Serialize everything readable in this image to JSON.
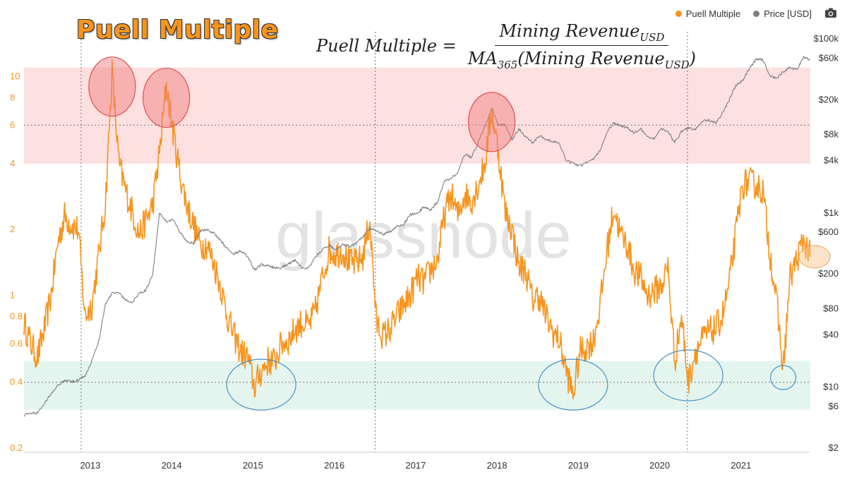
{
  "title": "Puell Multiple",
  "formula": {
    "lhs": "Puell Multiple =",
    "numerator": "Mining Revenue",
    "numerator_sub": "USD",
    "denominator": "MA",
    "denominator_sub1": "365",
    "denominator_mid": "(Mining Revenue",
    "denominator_sub2": "USD",
    "denominator_end": ")"
  },
  "legend": [
    {
      "label": "Puell Multiple",
      "color": "#f7941d"
    },
    {
      "label": "Price [USD]",
      "color": "#7f7f7f"
    }
  ],
  "watermark": "glassnode",
  "colors": {
    "puell": "#f7941d",
    "price": "#7f7f7f",
    "sell_zone": "#fde0e0",
    "buy_zone": "#e3f5ee",
    "red_circle": "#ef7878",
    "blue_circle": "#4a90c8"
  },
  "chart_data": {
    "type": "line",
    "x_ticks": [
      "2013",
      "2014",
      "2015",
      "2016",
      "2017",
      "2018",
      "2019",
      "2020",
      "2021"
    ],
    "x_range": [
      "2012-03",
      "2021-11"
    ],
    "y_left_ticks": [
      "10",
      "8",
      "6",
      "4",
      "2",
      "1",
      "0.8",
      "0.6",
      "0.4",
      "0.2"
    ],
    "y_left_range": [
      0.2,
      12
    ],
    "y_left_scale": "log",
    "y_right_ticks": [
      "$100k",
      "$60k",
      "$20k",
      "$8k",
      "$4k",
      "$1k",
      "$600",
      "$200",
      "$80",
      "$40",
      "$10",
      "$6",
      "$2"
    ],
    "y_right_range": [
      2,
      100000
    ],
    "y_right_scale": "log",
    "bands": [
      {
        "name": "sell",
        "from": 4,
        "to": 11,
        "color": "#fde0e0"
      },
      {
        "name": "buy",
        "from": 0.3,
        "to": 0.5,
        "color": "#e3f5ee"
      }
    ],
    "reference_lines": [
      {
        "axis": "y",
        "value": 6
      },
      {
        "axis": "y",
        "value": 0.4
      }
    ],
    "vertical_markers": [
      "2012-11-28",
      "2016-07-09",
      "2020-05-11"
    ],
    "series": [
      {
        "name": "Puell Multiple",
        "color": "#f7941d",
        "axis": "left",
        "points": [
          [
            "2012-03",
            0.75
          ],
          [
            "2012-04",
            0.6
          ],
          [
            "2012-05",
            0.52
          ],
          [
            "2012-06",
            0.7
          ],
          [
            "2012-07",
            1.0
          ],
          [
            "2012-08",
            1.75
          ],
          [
            "2012-09",
            2.3
          ],
          [
            "2012-10",
            2.1
          ],
          [
            "2012-11",
            2.0
          ],
          [
            "2012-12",
            0.8
          ],
          [
            "2013-01",
            0.9
          ],
          [
            "2013-02",
            1.5
          ],
          [
            "2013-03",
            2.6
          ],
          [
            "2013-04",
            10.5
          ],
          [
            "2013-05",
            4.0
          ],
          [
            "2013-06",
            3.0
          ],
          [
            "2013-07",
            2.4
          ],
          [
            "2013-08",
            1.9
          ],
          [
            "2013-09",
            2.2
          ],
          [
            "2013-10",
            2.6
          ],
          [
            "2013-11",
            4.5
          ],
          [
            "2013-12",
            9.2
          ],
          [
            "2014-01",
            5.6
          ],
          [
            "2014-02",
            3.6
          ],
          [
            "2014-03",
            2.6
          ],
          [
            "2014-04",
            2.1
          ],
          [
            "2014-05",
            1.7
          ],
          [
            "2014-06",
            1.7
          ],
          [
            "2014-07",
            1.4
          ],
          [
            "2014-08",
            1.1
          ],
          [
            "2014-09",
            0.8
          ],
          [
            "2014-10",
            0.65
          ],
          [
            "2014-11",
            0.55
          ],
          [
            "2014-12",
            0.52
          ],
          [
            "2015-01",
            0.38
          ],
          [
            "2015-02",
            0.45
          ],
          [
            "2015-03",
            0.5
          ],
          [
            "2015-04",
            0.5
          ],
          [
            "2015-05",
            0.6
          ],
          [
            "2015-06",
            0.62
          ],
          [
            "2015-07",
            0.7
          ],
          [
            "2015-08",
            0.75
          ],
          [
            "2015-09",
            0.72
          ],
          [
            "2015-10",
            0.85
          ],
          [
            "2015-11",
            1.2
          ],
          [
            "2015-12",
            1.6
          ],
          [
            "2016-01",
            1.55
          ],
          [
            "2016-02",
            1.6
          ],
          [
            "2016-03",
            1.4
          ],
          [
            "2016-04",
            1.4
          ],
          [
            "2016-05",
            1.5
          ],
          [
            "2016-06",
            2.2
          ],
          [
            "2016-07",
            0.75
          ],
          [
            "2016-08",
            0.65
          ],
          [
            "2016-09",
            0.7
          ],
          [
            "2016-10",
            0.8
          ],
          [
            "2016-11",
            0.9
          ],
          [
            "2016-12",
            1.0
          ],
          [
            "2017-01",
            1.2
          ],
          [
            "2017-02",
            1.15
          ],
          [
            "2017-03",
            1.3
          ],
          [
            "2017-04",
            1.45
          ],
          [
            "2017-05",
            2.3
          ],
          [
            "2017-06",
            2.9
          ],
          [
            "2017-07",
            2.3
          ],
          [
            "2017-08",
            2.9
          ],
          [
            "2017-09",
            2.7
          ],
          [
            "2017-10",
            3.2
          ],
          [
            "2017-11",
            4.0
          ],
          [
            "2017-12",
            7.0
          ],
          [
            "2018-01",
            4.5
          ],
          [
            "2018-02",
            2.4
          ],
          [
            "2018-03",
            2.0
          ],
          [
            "2018-04",
            1.35
          ],
          [
            "2018-05",
            1.3
          ],
          [
            "2018-06",
            0.95
          ],
          [
            "2018-07",
            1.0
          ],
          [
            "2018-08",
            0.8
          ],
          [
            "2018-09",
            0.68
          ],
          [
            "2018-10",
            0.62
          ],
          [
            "2018-11",
            0.45
          ],
          [
            "2018-12",
            0.35
          ],
          [
            "2019-01",
            0.55
          ],
          [
            "2019-02",
            0.58
          ],
          [
            "2019-03",
            0.62
          ],
          [
            "2019-04",
            0.9
          ],
          [
            "2019-05",
            1.6
          ],
          [
            "2019-06",
            2.5
          ],
          [
            "2019-07",
            1.9
          ],
          [
            "2019-08",
            1.7
          ],
          [
            "2019-09",
            1.3
          ],
          [
            "2019-10",
            1.2
          ],
          [
            "2019-11",
            1.0
          ],
          [
            "2019-12",
            1.05
          ],
          [
            "2020-01",
            1.1
          ],
          [
            "2020-02",
            1.35
          ],
          [
            "2020-03",
            0.5
          ],
          [
            "2020-04",
            0.8
          ],
          [
            "2020-05",
            0.4
          ],
          [
            "2020-06",
            0.55
          ],
          [
            "2020-07",
            0.62
          ],
          [
            "2020-08",
            0.68
          ],
          [
            "2020-09",
            0.7
          ],
          [
            "2020-10",
            0.8
          ],
          [
            "2020-11",
            1.1
          ],
          [
            "2020-12",
            1.9
          ],
          [
            "2021-01",
            3.2
          ],
          [
            "2021-02",
            3.3
          ],
          [
            "2021-03",
            3.2
          ],
          [
            "2021-04",
            3.0
          ],
          [
            "2021-05",
            1.6
          ],
          [
            "2021-06",
            0.95
          ],
          [
            "2021-07",
            0.45
          ],
          [
            "2021-08",
            1.2
          ],
          [
            "2021-09",
            1.45
          ],
          [
            "2021-10",
            1.8
          ],
          [
            "2021-11",
            1.5
          ]
        ]
      },
      {
        "name": "Price [USD]",
        "color": "#7f7f7f",
        "axis": "right",
        "points": [
          [
            "2012-03",
            4.8
          ],
          [
            "2012-04",
            5.0
          ],
          [
            "2012-05",
            5.1
          ],
          [
            "2012-06",
            6.5
          ],
          [
            "2012-07",
            8.5
          ],
          [
            "2012-08",
            10.5
          ],
          [
            "2012-09",
            12
          ],
          [
            "2012-10",
            11.5
          ],
          [
            "2012-11",
            12
          ],
          [
            "2012-12",
            13.5
          ],
          [
            "2013-01",
            20
          ],
          [
            "2013-02",
            33
          ],
          [
            "2013-03",
            90
          ],
          [
            "2013-04",
            120
          ],
          [
            "2013-05",
            122
          ],
          [
            "2013-06",
            100
          ],
          [
            "2013-07",
            95
          ],
          [
            "2013-08",
            120
          ],
          [
            "2013-09",
            130
          ],
          [
            "2013-10",
            200
          ],
          [
            "2013-11",
            1000
          ],
          [
            "2013-12",
            800
          ],
          [
            "2014-01",
            850
          ],
          [
            "2014-02",
            600
          ],
          [
            "2014-03",
            480
          ],
          [
            "2014-04",
            450
          ],
          [
            "2014-05",
            620
          ],
          [
            "2014-06",
            640
          ],
          [
            "2014-07",
            590
          ],
          [
            "2014-08",
            480
          ],
          [
            "2014-09",
            390
          ],
          [
            "2014-10",
            340
          ],
          [
            "2014-11",
            370
          ],
          [
            "2014-12",
            320
          ],
          [
            "2015-01",
            220
          ],
          [
            "2015-02",
            255
          ],
          [
            "2015-03",
            250
          ],
          [
            "2015-04",
            235
          ],
          [
            "2015-05",
            235
          ],
          [
            "2015-06",
            262
          ],
          [
            "2015-07",
            285
          ],
          [
            "2015-08",
            230
          ],
          [
            "2015-09",
            236
          ],
          [
            "2015-10",
            314
          ],
          [
            "2015-11",
            377
          ],
          [
            "2015-12",
            430
          ],
          [
            "2016-01",
            370
          ],
          [
            "2016-02",
            437
          ],
          [
            "2016-03",
            416
          ],
          [
            "2016-04",
            448
          ],
          [
            "2016-05",
            530
          ],
          [
            "2016-06",
            670
          ],
          [
            "2016-07",
            624
          ],
          [
            "2016-08",
            573
          ],
          [
            "2016-09",
            608
          ],
          [
            "2016-10",
            700
          ],
          [
            "2016-11",
            742
          ],
          [
            "2016-12",
            960
          ],
          [
            "2017-01",
            970
          ],
          [
            "2017-02",
            1190
          ],
          [
            "2017-03",
            1080
          ],
          [
            "2017-04",
            1350
          ],
          [
            "2017-05",
            2300
          ],
          [
            "2017-06",
            2480
          ],
          [
            "2017-07",
            2880
          ],
          [
            "2017-08",
            4700
          ],
          [
            "2017-09",
            4340
          ],
          [
            "2017-10",
            6450
          ],
          [
            "2017-11",
            10000
          ],
          [
            "2017-12",
            16000
          ],
          [
            "2018-01",
            10200
          ],
          [
            "2018-02",
            10300
          ],
          [
            "2018-03",
            6900
          ],
          [
            "2018-04",
            9200
          ],
          [
            "2018-05",
            7500
          ],
          [
            "2018-06",
            6400
          ],
          [
            "2018-07",
            7700
          ],
          [
            "2018-08",
            7000
          ],
          [
            "2018-09",
            6600
          ],
          [
            "2018-10",
            6300
          ],
          [
            "2018-11",
            4000
          ],
          [
            "2018-12",
            3700
          ],
          [
            "2019-01",
            3450
          ],
          [
            "2019-02",
            3850
          ],
          [
            "2019-03",
            4100
          ],
          [
            "2019-04",
            5300
          ],
          [
            "2019-05",
            8600
          ],
          [
            "2019-06",
            10800
          ],
          [
            "2019-07",
            10000
          ],
          [
            "2019-08",
            9600
          ],
          [
            "2019-09",
            8300
          ],
          [
            "2019-10",
            9200
          ],
          [
            "2019-11",
            7500
          ],
          [
            "2019-12",
            7200
          ],
          [
            "2020-01",
            9300
          ],
          [
            "2020-02",
            8600
          ],
          [
            "2020-03",
            6400
          ],
          [
            "2020-04",
            8600
          ],
          [
            "2020-05",
            9400
          ],
          [
            "2020-06",
            9100
          ],
          [
            "2020-07",
            11300
          ],
          [
            "2020-08",
            11600
          ],
          [
            "2020-09",
            10800
          ],
          [
            "2020-10",
            13800
          ],
          [
            "2020-11",
            19700
          ],
          [
            "2020-12",
            29000
          ],
          [
            "2021-01",
            33100
          ],
          [
            "2021-02",
            45200
          ],
          [
            "2021-03",
            58800
          ],
          [
            "2021-04",
            57700
          ],
          [
            "2021-05",
            37300
          ],
          [
            "2021-06",
            35000
          ],
          [
            "2021-07",
            41500
          ],
          [
            "2021-08",
            47100
          ],
          [
            "2021-09",
            43800
          ],
          [
            "2021-10",
            61300
          ],
          [
            "2021-11",
            57000
          ]
        ]
      }
    ],
    "highlights": [
      {
        "type": "red-circle",
        "x": "2013-04",
        "y": 9.0
      },
      {
        "type": "red-circle",
        "x": "2013-12",
        "y": 8.0
      },
      {
        "type": "red-circle",
        "x": "2017-12",
        "y": 6.2
      },
      {
        "type": "blue-circle",
        "x": "2015-02",
        "y": 0.39
      },
      {
        "type": "blue-circle",
        "x": "2018-12",
        "y": 0.39
      },
      {
        "type": "blue-circle",
        "x": "2020-05",
        "y": 0.43
      },
      {
        "type": "blue-circle",
        "x": "2021-07",
        "y": 0.42
      },
      {
        "type": "orange-ellipse",
        "x": "2021-11",
        "y": 1.5
      }
    ]
  }
}
